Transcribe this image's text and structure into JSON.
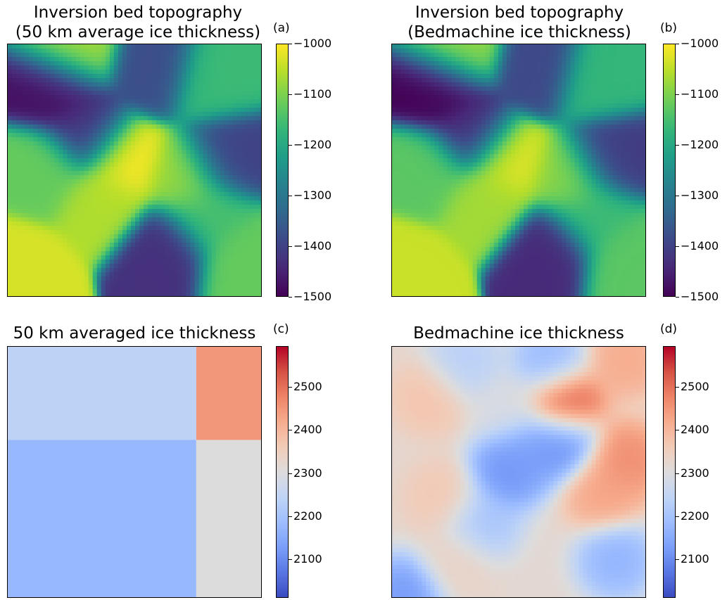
{
  "chart_data": [
    {
      "type": "heatmap",
      "panel_label": "(a)",
      "title_lines": [
        "Inversion bed topography",
        "(50 km average ice thickness)"
      ],
      "colormap": "viridis",
      "colorbar": {
        "min": -1500,
        "max": -1000,
        "ticks": [
          "−1000",
          "−1100",
          "−1200",
          "−1300",
          "−1400",
          "−1500"
        ],
        "tick_values": [
          -1000,
          -1100,
          -1200,
          -1300,
          -1400,
          -1500
        ]
      },
      "features": [
        {
          "x": 0.2,
          "y": 0.18,
          "v": -1480
        },
        {
          "x": 0.45,
          "y": 0.45,
          "v": -1000
        },
        {
          "x": 0.7,
          "y": 0.52,
          "v": -1080
        },
        {
          "x": 0.37,
          "y": 0.62,
          "v": -1060
        },
        {
          "x": 0.05,
          "y": 0.9,
          "v": -1030
        },
        {
          "x": 0.26,
          "y": 0.03,
          "v": -1070
        },
        {
          "x": 0.32,
          "y": 0.35,
          "v": -1420
        },
        {
          "x": 0.15,
          "y": 0.5,
          "v": -1120
        },
        {
          "x": 0.62,
          "y": 0.82,
          "v": -1430
        },
        {
          "x": 0.85,
          "y": 0.44,
          "v": -1400
        },
        {
          "x": 0.92,
          "y": 0.86,
          "v": -1120
        },
        {
          "x": 0.8,
          "y": 0.15,
          "v": -1160
        },
        {
          "x": 0.58,
          "y": 0.1,
          "v": -1380
        },
        {
          "x": 0.78,
          "y": 0.68,
          "v": -1150
        }
      ]
    },
    {
      "type": "heatmap",
      "panel_label": "(b)",
      "title_lines": [
        "Inversion bed topography",
        "(Bedmachine ice thickness)"
      ],
      "colormap": "viridis",
      "colorbar": {
        "min": -1500,
        "max": -1000,
        "ticks": [
          "−1000",
          "−1100",
          "−1200",
          "−1300",
          "−1400",
          "−1500"
        ],
        "tick_values": [
          -1000,
          -1100,
          -1200,
          -1300,
          -1400,
          -1500
        ]
      },
      "features": [
        {
          "x": 0.2,
          "y": 0.18,
          "v": -1500
        },
        {
          "x": 0.45,
          "y": 0.45,
          "v": -1020
        },
        {
          "x": 0.7,
          "y": 0.52,
          "v": -1090
        },
        {
          "x": 0.37,
          "y": 0.62,
          "v": -1070
        },
        {
          "x": 0.05,
          "y": 0.9,
          "v": -1040
        },
        {
          "x": 0.26,
          "y": 0.03,
          "v": -1080
        },
        {
          "x": 0.32,
          "y": 0.35,
          "v": -1430
        },
        {
          "x": 0.15,
          "y": 0.5,
          "v": -1130
        },
        {
          "x": 0.62,
          "y": 0.82,
          "v": -1440
        },
        {
          "x": 0.85,
          "y": 0.44,
          "v": -1410
        },
        {
          "x": 0.92,
          "y": 0.86,
          "v": -1130
        },
        {
          "x": 0.8,
          "y": 0.15,
          "v": -1170
        },
        {
          "x": 0.58,
          "y": 0.1,
          "v": -1390
        },
        {
          "x": 0.78,
          "y": 0.68,
          "v": -1160
        }
      ]
    },
    {
      "type": "heatmap",
      "panel_label": "(c)",
      "title_lines": [
        "50 km averaged ice thickness"
      ],
      "colormap": "coolwarm",
      "colorbar": {
        "min": 2010,
        "max": 2595,
        "ticks": [
          "2500",
          "2400",
          "2300",
          "2200",
          "2100"
        ],
        "tick_values": [
          2500,
          2400,
          2300,
          2200,
          2100
        ]
      },
      "blocks": [
        {
          "x0": 0.0,
          "x1": 0.74,
          "y0": 0.0,
          "y1": 0.37,
          "value": 2240
        },
        {
          "x0": 0.74,
          "x1": 1.0,
          "y0": 0.0,
          "y1": 0.37,
          "value": 2450
        },
        {
          "x0": 0.0,
          "x1": 0.74,
          "y0": 0.37,
          "y1": 1.0,
          "value": 2175
        },
        {
          "x0": 0.74,
          "x1": 1.0,
          "y0": 0.37,
          "y1": 1.0,
          "value": 2300
        }
      ]
    },
    {
      "type": "heatmap",
      "panel_label": "(d)",
      "title_lines": [
        "Bedmachine ice thickness"
      ],
      "colormap": "coolwarm",
      "colorbar": {
        "min": 2010,
        "max": 2595,
        "ticks": [
          "2500",
          "2400",
          "2300",
          "2200",
          "2100"
        ],
        "tick_values": [
          2500,
          2400,
          2300,
          2200,
          2100
        ]
      },
      "background_value": 2320,
      "features": [
        {
          "x": 0.15,
          "y": 0.2,
          "v": 2380
        },
        {
          "x": 0.2,
          "y": 0.6,
          "v": 2370
        },
        {
          "x": 0.25,
          "y": 0.85,
          "v": 2340
        },
        {
          "x": 0.45,
          "y": 0.25,
          "v": 2290
        },
        {
          "x": 0.52,
          "y": 0.42,
          "v": 2120
        },
        {
          "x": 0.45,
          "y": 0.5,
          "v": 2090
        },
        {
          "x": 0.66,
          "y": 0.38,
          "v": 2080
        },
        {
          "x": 0.68,
          "y": 0.22,
          "v": 2560
        },
        {
          "x": 0.62,
          "y": 0.07,
          "v": 2160
        },
        {
          "x": 0.28,
          "y": 0.07,
          "v": 2220
        },
        {
          "x": 0.92,
          "y": 0.45,
          "v": 2480
        },
        {
          "x": 0.83,
          "y": 0.58,
          "v": 2440
        },
        {
          "x": 0.88,
          "y": 0.85,
          "v": 2150
        },
        {
          "x": 0.05,
          "y": 0.98,
          "v": 2100
        },
        {
          "x": 0.92,
          "y": 0.05,
          "v": 2430
        },
        {
          "x": 0.35,
          "y": 0.7,
          "v": 2190
        }
      ]
    }
  ]
}
